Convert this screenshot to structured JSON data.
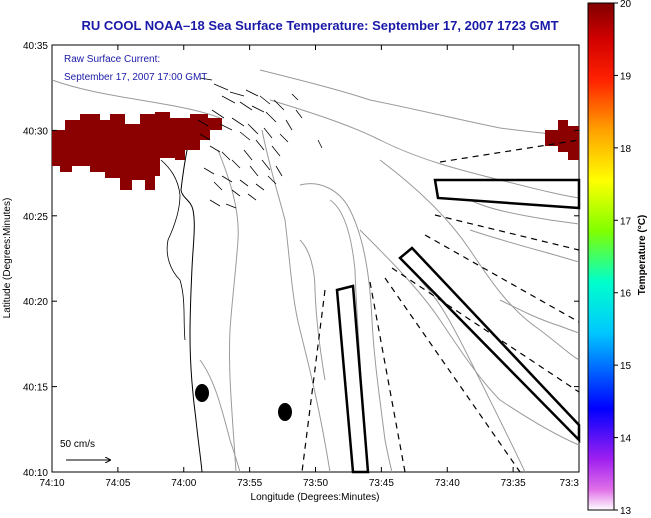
{
  "title": "RU COOL  NOAA–18  Sea Surface Temperature:  September 17, 2007 1723 GMT",
  "subtitle_line1": "Raw Surface Current:",
  "subtitle_line2": "September 17, 2007 17:00 GMT",
  "xlabel": "Longitude (Degrees:Minutes)",
  "ylabel": "Latitude (Degrees:Minutes)",
  "x_ticks": [
    "74:10",
    "74:05",
    "74:00",
    "73:55",
    "73:50",
    "73:45",
    "73:40",
    "73:35",
    "73:3"
  ],
  "y_ticks": [
    "40:35",
    "40:30",
    "40:25",
    "40:20",
    "40:15",
    "40:10"
  ],
  "colorbar": {
    "label": "Temperature (°C)",
    "ticks": [
      "20",
      "19",
      "18",
      "17",
      "16",
      "15",
      "14",
      "13"
    ],
    "min": 13,
    "max": 20
  },
  "scale_label": "50 cm/s",
  "colors": {
    "title": "#1a1aa8",
    "sst_patch": "#8b0000",
    "contour": "#9a9a9a"
  }
}
